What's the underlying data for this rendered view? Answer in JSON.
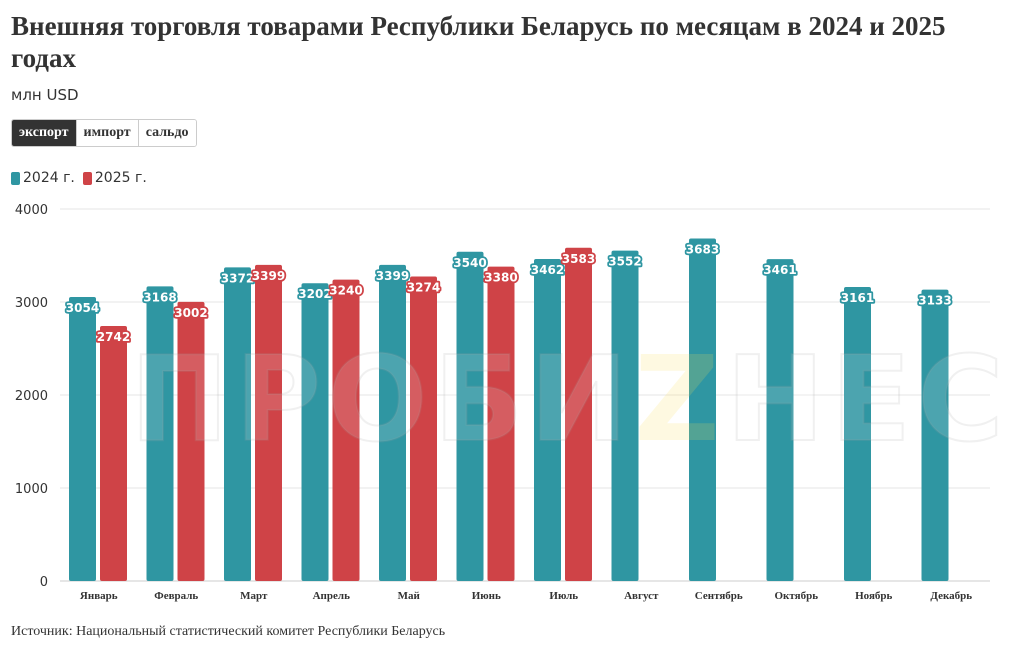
{
  "header": {
    "title": "Внешняя торговля товарами Республики Беларусь по месяцам в 2024 и 2025 годах",
    "subtitle": "млн USD"
  },
  "tabs": [
    {
      "label": "экспорт",
      "active": true
    },
    {
      "label": "импорт",
      "active": false
    },
    {
      "label": "сальдо",
      "active": false
    }
  ],
  "watermark": "ПРОБИZНЕС",
  "source": "Источник: Национальный статистический комитет Республики Беларусь",
  "colors": {
    "series2024": "#2f96a2",
    "series2025": "#cf4347",
    "grid": "#e6e6e6",
    "text": "#333333"
  },
  "chart_data": {
    "type": "bar",
    "title": "Внешняя торговля товарами Республики Беларусь по месяцам в 2024 и 2025 годах",
    "subtitle": "млн USD",
    "categories": [
      "Январь",
      "Февраль",
      "Март",
      "Апрель",
      "Май",
      "Июнь",
      "Июль",
      "Август",
      "Сентябрь",
      "Октябрь",
      "Ноябрь",
      "Декабрь"
    ],
    "series": [
      {
        "name": "2024 г.",
        "values": [
          3054,
          3168,
          3372,
          3202,
          3399,
          3540,
          3462,
          3552,
          3683,
          3461,
          3161,
          3133
        ]
      },
      {
        "name": "2025 г.",
        "values": [
          2742,
          3002,
          3399,
          3240,
          3274,
          3380,
          3583,
          null,
          null,
          null,
          null,
          null
        ]
      }
    ],
    "yticks": [
      "0",
      "1000",
      "2000",
      "3000",
      "4000"
    ],
    "ylim": [
      0,
      4000
    ],
    "grid": true,
    "legend_position": "top-left"
  }
}
